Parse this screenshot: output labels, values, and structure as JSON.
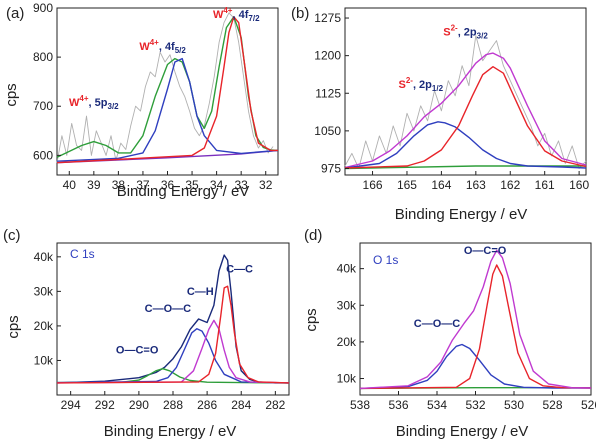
{
  "chart_data": [
    {
      "type": "line",
      "panel_label": "(a)",
      "xlabel": "Binding Energy / eV",
      "ylabel": "cps",
      "xlim": [
        40.5,
        31.5
      ],
      "ylim": [
        560,
        900
      ],
      "xticks": [
        40,
        39,
        38,
        37,
        36,
        35,
        34,
        33,
        32
      ],
      "yticks": [
        600,
        700,
        800,
        900
      ],
      "grid": false,
      "annotations": [
        {
          "sup": "W",
          "ox": "4+",
          "orb": ", 5p",
          "sub": "3/2",
          "x": 39.0,
          "y": 700
        },
        {
          "sup": "W",
          "ox": "4+",
          "orb": ", 4f",
          "sub": "5/2",
          "x": 36.2,
          "y": 815
        },
        {
          "sup": "W",
          "ox": "4+",
          "orb": ", 4f",
          "sub": "7/2",
          "x": 33.2,
          "y": 880
        }
      ],
      "series": [
        {
          "color": "#b0b0b0",
          "x": [
            40.5,
            40.3,
            40.1,
            39.9,
            39.7,
            39.5,
            39.3,
            39.1,
            38.9,
            38.7,
            38.5,
            38.3,
            38.1,
            37.9,
            37.7,
            37.5,
            37.3,
            37.1,
            36.9,
            36.7,
            36.5,
            36.3,
            36.1,
            35.9,
            35.7,
            35.5,
            35.3,
            35.1,
            34.9,
            34.7,
            34.5,
            34.3,
            34.1,
            33.9,
            33.7,
            33.5,
            33.3,
            33.1,
            32.9,
            32.7,
            32.5,
            32.3,
            32.1,
            31.9,
            31.7
          ],
          "values": [
            585,
            640,
            600,
            665,
            620,
            610,
            680,
            600,
            650,
            625,
            600,
            640,
            590,
            625,
            612,
            660,
            700,
            690,
            740,
            770,
            760,
            810,
            790,
            805,
            770,
            740,
            720,
            690,
            655,
            640,
            660,
            705,
            760,
            830,
            870,
            890,
            880,
            830,
            760,
            690,
            640,
            615,
            630,
            605,
            618
          ]
        },
        {
          "color": "#7b2fbe",
          "x": [
            40.5,
            36.0,
            33.0,
            31.5
          ],
          "values": [
            585,
            595,
            603,
            610
          ]
        },
        {
          "color": "#2e9e3a",
          "x": [
            40.5,
            40.0,
            39.5,
            39.0,
            38.5,
            38.0,
            37.5,
            37.0,
            36.5,
            36.0,
            35.7,
            35.4,
            35.1,
            34.8,
            34.5,
            34.2,
            33.9,
            33.6,
            33.3,
            33.0,
            32.7,
            32.4,
            32.1,
            31.8,
            31.5
          ],
          "values": [
            596,
            608,
            620,
            628,
            620,
            605,
            605,
            640,
            720,
            785,
            797,
            790,
            750,
            680,
            655,
            690,
            780,
            860,
            882,
            840,
            720,
            640,
            616,
            611,
            610
          ]
        },
        {
          "color": "#2f3fbf",
          "x": [
            40.5,
            38.0,
            37.0,
            36.5,
            36.0,
            35.7,
            35.4,
            35.1,
            34.8,
            34.5,
            34.0,
            33.0,
            31.5
          ],
          "values": [
            588,
            594,
            605,
            650,
            735,
            790,
            797,
            750,
            680,
            640,
            610,
            604,
            610
          ]
        },
        {
          "color": "#e8242a",
          "x": [
            40.5,
            35.0,
            34.5,
            34.0,
            33.7,
            33.5,
            33.3,
            33.1,
            32.9,
            32.6,
            32.3,
            31.8,
            31.5
          ],
          "values": [
            585,
            600,
            615,
            680,
            780,
            850,
            882,
            870,
            800,
            690,
            625,
            610,
            610
          ]
        }
      ]
    },
    {
      "type": "line",
      "panel_label": "(b)",
      "xlabel": "Binding Energy / eV",
      "ylabel": "",
      "xlim": [
        166.8,
        159.8
      ],
      "ylim": [
        962,
        1295
      ],
      "xticks": [
        166,
        165,
        164,
        163,
        162,
        161,
        160
      ],
      "yticks": [
        975,
        1050,
        1125,
        1200,
        1275
      ],
      "grid": false,
      "annotations": [
        {
          "sup": "S",
          "ox": "2-",
          "orb": ", 2p",
          "sub": "1/2",
          "x": 164.6,
          "y": 1135
        },
        {
          "sup": "S",
          "ox": "2-",
          "orb": ", 2p",
          "sub": "3/2",
          "x": 163.3,
          "y": 1240
        }
      ],
      "series": [
        {
          "color": "#b0b0b0",
          "x": [
            166.8,
            166.6,
            166.4,
            166.2,
            166.0,
            165.8,
            165.6,
            165.4,
            165.2,
            165.0,
            164.8,
            164.6,
            164.4,
            164.2,
            164.0,
            163.8,
            163.6,
            163.4,
            163.2,
            163.0,
            162.8,
            162.6,
            162.4,
            162.2,
            162.0,
            161.8,
            161.6,
            161.4,
            161.2,
            161.0,
            160.8,
            160.6,
            160.4,
            160.2,
            160.0,
            159.8
          ],
          "values": [
            980,
            1005,
            975,
            1030,
            990,
            1040,
            1005,
            1060,
            1020,
            1085,
            1050,
            1100,
            1070,
            1130,
            1090,
            1150,
            1120,
            1180,
            1140,
            1240,
            1190,
            1210,
            1230,
            1180,
            1150,
            1120,
            1090,
            1060,
            1020,
            1045,
            1000,
            1030,
            985,
            1020,
            975,
            990
          ]
        },
        {
          "color": "#2e9e3a",
          "x": [
            166.8,
            163.0,
            159.8
          ],
          "values": [
            975,
            980,
            980
          ]
        },
        {
          "color": "#c03ad0",
          "x": [
            166.8,
            166.0,
            165.5,
            165.0,
            164.5,
            164.0,
            163.5,
            163.0,
            162.7,
            162.5,
            162.2,
            162.0,
            161.5,
            161.0,
            160.5,
            159.8
          ],
          "values": [
            977,
            990,
            1010,
            1040,
            1078,
            1105,
            1140,
            1185,
            1202,
            1205,
            1195,
            1175,
            1100,
            1030,
            995,
            982
          ]
        },
        {
          "color": "#2f3fbf",
          "x": [
            166.8,
            165.8,
            165.3,
            164.8,
            164.4,
            164.1,
            163.9,
            163.6,
            163.2,
            162.8,
            162.4,
            162.0,
            161.5,
            160.5,
            159.8
          ],
          "values": [
            976,
            985,
            1005,
            1040,
            1062,
            1068,
            1066,
            1058,
            1037,
            1012,
            995,
            985,
            980,
            978,
            976
          ]
        },
        {
          "color": "#e8242a",
          "x": [
            166.8,
            165.0,
            164.5,
            164.0,
            163.5,
            163.1,
            162.8,
            162.5,
            162.2,
            161.9,
            161.5,
            161.0,
            160.5,
            159.8
          ],
          "values": [
            976,
            980,
            990,
            1012,
            1060,
            1120,
            1162,
            1178,
            1165,
            1120,
            1060,
            1010,
            990,
            979
          ]
        }
      ]
    },
    {
      "type": "line",
      "panel_label": "(c)",
      "inset_title": "C 1s",
      "xlabel": "Binding Energy / eV",
      "ylabel": "cps",
      "xlim": [
        294.8,
        281.2
      ],
      "ylim": [
        0,
        44000
      ],
      "xticks": [
        294,
        292,
        290,
        288,
        286,
        284,
        282
      ],
      "yticks": [
        10000,
        20000,
        30000,
        40000
      ],
      "ytick_labels": [
        "10k",
        "20k",
        "30k",
        "40k"
      ],
      "grid": false,
      "annotations": [
        {
          "text": "O—C=O",
          "x": 290.1,
          "y": 12000
        },
        {
          "text": "C—O—C",
          "x": 288.3,
          "y": 24000
        },
        {
          "text": "C—H",
          "x": 286.4,
          "y": 29000
        },
        {
          "text": "C—C",
          "x": 284.1,
          "y": 35500
        }
      ],
      "series": [
        {
          "color": "#1a2a7a",
          "x": [
            294.8,
            292.0,
            290.0,
            289.0,
            288.5,
            288.0,
            287.5,
            287.0,
            286.5,
            286.0,
            285.6,
            285.3,
            285.0,
            284.8,
            284.6,
            284.3,
            284.0,
            283.5,
            283.0,
            282.0,
            281.2
          ],
          "values": [
            3500,
            4000,
            5000,
            6500,
            8000,
            10500,
            14000,
            19000,
            22000,
            21000,
            26000,
            36000,
            40500,
            39000,
            30000,
            14000,
            7000,
            4500,
            3800,
            3500,
            3500
          ]
        },
        {
          "color": "#2e9e3a",
          "x": [
            294.8,
            291.0,
            290.0,
            289.5,
            289.0,
            288.6,
            288.2,
            287.6,
            287.0,
            286.0,
            284.0,
            281.2
          ],
          "values": [
            3600,
            3700,
            4300,
            5600,
            7000,
            7600,
            7000,
            5200,
            4200,
            3700,
            3600,
            3500
          ]
        },
        {
          "color": "#2f3fbf",
          "x": [
            294.8,
            289.0,
            288.3,
            287.8,
            287.3,
            286.9,
            286.6,
            286.3,
            285.9,
            285.5,
            285.0,
            284.0,
            281.2
          ],
          "values": [
            3600,
            3900,
            5000,
            8000,
            13500,
            18000,
            19200,
            18500,
            15000,
            10000,
            6000,
            3800,
            3500
          ]
        },
        {
          "color": "#c03ad0",
          "x": [
            294.8,
            287.5,
            286.8,
            286.3,
            285.9,
            285.6,
            285.3,
            285.0,
            284.7,
            284.3,
            283.5,
            281.2
          ],
          "values": [
            3500,
            3800,
            7000,
            13500,
            19000,
            21600,
            19000,
            13000,
            8000,
            5000,
            3800,
            3500
          ]
        },
        {
          "color": "#e8242a",
          "x": [
            294.8,
            286.5,
            285.9,
            285.5,
            285.2,
            285.0,
            284.8,
            284.6,
            284.4,
            284.1,
            283.6,
            283.0,
            281.2
          ],
          "values": [
            3500,
            3800,
            6000,
            12000,
            23000,
            31000,
            31500,
            26000,
            18000,
            9000,
            5000,
            3800,
            3500
          ]
        }
      ]
    },
    {
      "type": "line",
      "panel_label": "(d)",
      "inset_title": "O 1s",
      "xlabel": "Binding Energy / eV",
      "ylabel": "cps",
      "xlim": [
        538,
        526
      ],
      "ylim": [
        5500,
        47000
      ],
      "xticks": [
        538,
        536,
        534,
        532,
        530,
        528,
        526
      ],
      "yticks": [
        10000,
        20000,
        30000,
        40000
      ],
      "ytick_labels": [
        "10k",
        "20k",
        "30k",
        "40k"
      ],
      "grid": false,
      "annotations": [
        {
          "text": "O—C=O",
          "x": 531.5,
          "y": 44000
        },
        {
          "text": "C—O—C",
          "x": 534.0,
          "y": 24000
        }
      ],
      "series": [
        {
          "color": "#2e9e3a",
          "x": [
            538,
            532,
            526
          ],
          "values": [
            7300,
            7500,
            7500
          ]
        },
        {
          "color": "#2f3fbf",
          "x": [
            538,
            535.5,
            534.5,
            534.0,
            533.5,
            533.0,
            532.7,
            532.3,
            531.8,
            531.2,
            530.5,
            529.5,
            528.0,
            526
          ],
          "values": [
            7300,
            7800,
            9500,
            12000,
            16000,
            18800,
            19300,
            18200,
            15000,
            11000,
            8500,
            7600,
            7400,
            7400
          ]
        },
        {
          "color": "#e8242a",
          "x": [
            538,
            533.0,
            532.3,
            531.8,
            531.4,
            531.1,
            530.9,
            530.6,
            530.3,
            529.8,
            529.2,
            528.5,
            527.5,
            526
          ],
          "values": [
            7300,
            7600,
            10000,
            18000,
            30000,
            38500,
            41000,
            38000,
            30000,
            17000,
            10000,
            8000,
            7500,
            7400
          ]
        },
        {
          "color": "#c03ad0",
          "x": [
            538,
            535.5,
            534.5,
            533.8,
            533.2,
            532.6,
            532.1,
            531.6,
            531.2,
            530.9,
            530.6,
            530.2,
            529.7,
            529.0,
            528.2,
            527.0,
            526
          ],
          "values": [
            7300,
            8000,
            10500,
            14500,
            20500,
            25000,
            28500,
            35000,
            42000,
            45000,
            43000,
            36000,
            22000,
            12000,
            8500,
            7500,
            7400
          ]
        }
      ]
    }
  ]
}
